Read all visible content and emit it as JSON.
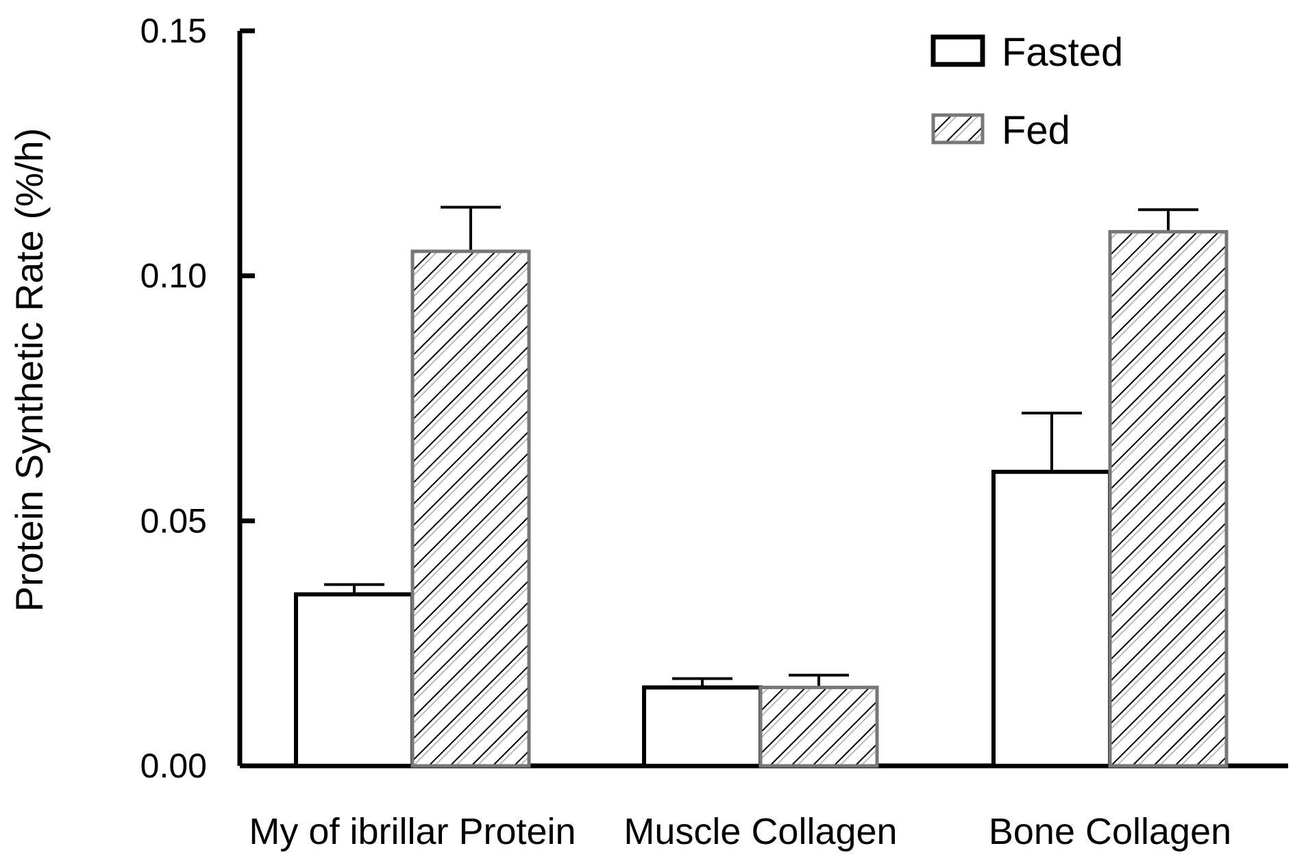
{
  "chart_data": {
    "type": "bar",
    "title": "",
    "ylabel": "Protein Synthetic Rate (%/h)",
    "xlabel": "",
    "ylim": [
      0,
      0.15
    ],
    "yticks": [
      "0.00",
      "0.05",
      "0.10",
      "0.15"
    ],
    "ytick_values": [
      0,
      0.05,
      0.1,
      0.15
    ],
    "categories": [
      "My of ibrillar Protein",
      "Muscle Collagen",
      "Bone Collagen"
    ],
    "series": [
      {
        "name": "Fasted",
        "values": [
          0.035,
          0.016,
          0.06
        ],
        "errors": [
          0.002,
          0.0018,
          0.012
        ],
        "pattern": "open",
        "color": "#ffffff"
      },
      {
        "name": "Fed",
        "values": [
          0.105,
          0.016,
          0.109
        ],
        "errors": [
          0.009,
          0.0025,
          0.0045
        ],
        "pattern": "hatched",
        "color": "#ffffff"
      }
    ],
    "legend_position": "top-right",
    "grid": false
  }
}
